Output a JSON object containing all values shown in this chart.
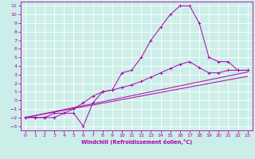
{
  "xlabel": "Windchill (Refroidissement éolien,°C)",
  "background_color": "#cceee8",
  "line_color": "#aa00aa",
  "xlim": [
    -0.5,
    23.5
  ],
  "ylim": [
    -3.5,
    11.5
  ],
  "xticks": [
    0,
    1,
    2,
    3,
    4,
    5,
    6,
    7,
    8,
    9,
    10,
    11,
    12,
    13,
    14,
    15,
    16,
    17,
    18,
    19,
    20,
    21,
    22,
    23
  ],
  "yticks": [
    -3,
    -2,
    -1,
    0,
    1,
    2,
    3,
    4,
    5,
    6,
    7,
    8,
    9,
    10,
    11
  ],
  "series1_x": [
    0,
    1,
    2,
    3,
    4,
    5,
    6,
    7,
    8,
    9,
    10,
    11,
    12,
    13,
    14,
    15,
    16,
    17,
    18,
    19,
    20,
    21,
    22,
    23
  ],
  "series1_y": [
    -2,
    -2,
    -2,
    -2,
    -1.5,
    -1.5,
    -3,
    -0.3,
    1,
    1.2,
    3.2,
    3.5,
    5,
    7,
    8.5,
    10,
    11,
    11,
    9,
    5,
    4.5,
    4.5,
    3.5,
    3.5
  ],
  "series2_x": [
    0,
    1,
    2,
    3,
    4,
    5,
    6,
    7,
    8,
    9,
    10,
    11,
    12,
    13,
    14,
    15,
    16,
    17,
    18,
    19,
    20,
    21,
    22,
    23
  ],
  "series2_y": [
    -2,
    -2,
    -2,
    -1.5,
    -1.5,
    -1,
    -0.3,
    0.5,
    1,
    1.2,
    1.5,
    1.8,
    2.2,
    2.7,
    3.2,
    3.7,
    4.2,
    4.5,
    3.8,
    3.2,
    3.2,
    3.5,
    3.5,
    3.5
  ],
  "series3_x": [
    0,
    23
  ],
  "series3_y": [
    -2.0,
    3.3
  ],
  "series4_x": [
    0,
    23
  ],
  "series4_y": [
    -2.0,
    2.8
  ]
}
